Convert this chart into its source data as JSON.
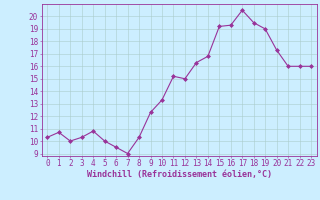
{
  "x": [
    0,
    1,
    2,
    3,
    4,
    5,
    6,
    7,
    8,
    9,
    10,
    11,
    12,
    13,
    14,
    15,
    16,
    17,
    18,
    19,
    20,
    21,
    22,
    23
  ],
  "y": [
    10.3,
    10.7,
    10.0,
    10.3,
    10.8,
    10.0,
    9.5,
    9.0,
    10.3,
    12.3,
    13.3,
    15.2,
    15.0,
    16.3,
    16.8,
    19.2,
    19.3,
    20.5,
    19.5,
    19.0,
    17.3,
    16.0,
    16.0,
    16.0
  ],
  "line_color": "#993399",
  "marker": "D",
  "marker_size": 2.0,
  "bg_color": "#cceeff",
  "grid_color": "#aacccc",
  "xlabel": "Windchill (Refroidissement éolien,°C)",
  "xlabel_color": "#993399",
  "ylabel_ticks": [
    9,
    10,
    11,
    12,
    13,
    14,
    15,
    16,
    17,
    18,
    19,
    20
  ],
  "xlim": [
    -0.5,
    23.5
  ],
  "ylim": [
    8.8,
    21.0
  ],
  "tick_color": "#993399",
  "label_fontsize": 6.0,
  "tick_fontsize": 5.5,
  "spine_color": "#993399"
}
